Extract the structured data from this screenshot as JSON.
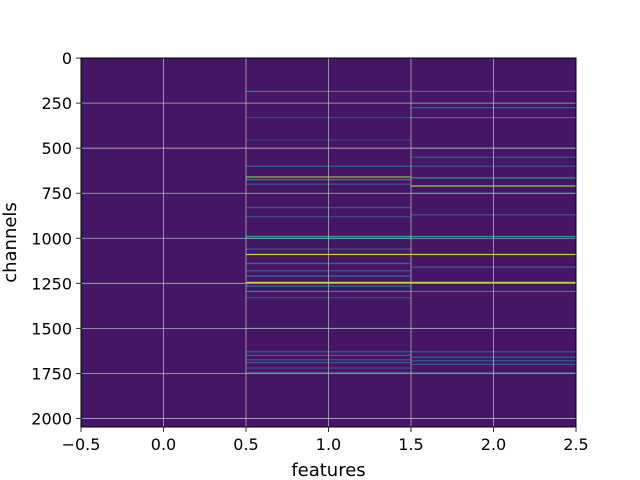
{
  "chart_data": {
    "type": "heatmap",
    "title": "",
    "xlabel": "features",
    "ylabel": "channels",
    "xlim": [
      -0.5,
      2.5
    ],
    "ylim": [
      2047.5,
      -0.5
    ],
    "x_ticks": [
      "−0.5",
      "0.0",
      "0.5",
      "1.0",
      "1.5",
      "2.0",
      "2.5"
    ],
    "x_tick_values": [
      -0.5,
      0.0,
      0.5,
      1.0,
      1.5,
      2.0,
      2.5
    ],
    "y_ticks": [
      "0",
      "250",
      "500",
      "750",
      "1000",
      "1250",
      "1500",
      "1750",
      "2000"
    ],
    "y_tick_values": [
      0,
      250,
      500,
      750,
      1000,
      1250,
      1500,
      1750,
      2000
    ],
    "grid": true,
    "colormap": "viridis",
    "value_range": [
      0,
      1
    ],
    "background_value": 0.06,
    "columns": [
      {
        "feature": 0,
        "rows": []
      },
      {
        "feature": 1,
        "rows": [
          {
            "channel": 185,
            "value": 0.45
          },
          {
            "channel": 330,
            "value": 0.22
          },
          {
            "channel": 455,
            "value": 0.2
          },
          {
            "channel": 600,
            "value": 0.35
          },
          {
            "channel": 660,
            "value": 0.8
          },
          {
            "channel": 675,
            "value": 0.5
          },
          {
            "channel": 700,
            "value": 0.3
          },
          {
            "channel": 830,
            "value": 0.3
          },
          {
            "channel": 880,
            "value": 0.25
          },
          {
            "channel": 990,
            "value": 0.6
          },
          {
            "channel": 1000,
            "value": 0.45
          },
          {
            "channel": 1060,
            "value": 0.3
          },
          {
            "channel": 1090,
            "value": 0.92
          },
          {
            "channel": 1140,
            "value": 0.35
          },
          {
            "channel": 1180,
            "value": 0.3
          },
          {
            "channel": 1210,
            "value": 0.4
          },
          {
            "channel": 1245,
            "value": 0.95
          },
          {
            "channel": 1265,
            "value": 0.4
          },
          {
            "channel": 1295,
            "value": 0.5
          },
          {
            "channel": 1330,
            "value": 0.25
          },
          {
            "channel": 1500,
            "value": 0.45
          },
          {
            "channel": 1630,
            "value": 0.35
          },
          {
            "channel": 1650,
            "value": 0.35
          },
          {
            "channel": 1675,
            "value": 0.3
          },
          {
            "channel": 1690,
            "value": 0.3
          },
          {
            "channel": 1720,
            "value": 0.25
          },
          {
            "channel": 1745,
            "value": 0.3
          }
        ]
      },
      {
        "feature": 2,
        "rows": [
          {
            "channel": 185,
            "value": 0.4
          },
          {
            "channel": 275,
            "value": 0.35
          },
          {
            "channel": 330,
            "value": 0.45
          },
          {
            "channel": 500,
            "value": 0.25
          },
          {
            "channel": 550,
            "value": 0.3
          },
          {
            "channel": 600,
            "value": 0.3
          },
          {
            "channel": 665,
            "value": 0.55
          },
          {
            "channel": 710,
            "value": 0.85
          },
          {
            "channel": 750,
            "value": 0.35
          },
          {
            "channel": 870,
            "value": 0.3
          },
          {
            "channel": 990,
            "value": 0.55
          },
          {
            "channel": 1090,
            "value": 0.9
          },
          {
            "channel": 1160,
            "value": 0.35
          },
          {
            "channel": 1245,
            "value": 0.92
          },
          {
            "channel": 1295,
            "value": 0.45
          },
          {
            "channel": 1500,
            "value": 0.35
          },
          {
            "channel": 1630,
            "value": 0.3
          },
          {
            "channel": 1660,
            "value": 0.35
          },
          {
            "channel": 1680,
            "value": 0.3
          },
          {
            "channel": 1700,
            "value": 0.3
          },
          {
            "channel": 1745,
            "value": 0.25
          }
        ]
      }
    ]
  }
}
